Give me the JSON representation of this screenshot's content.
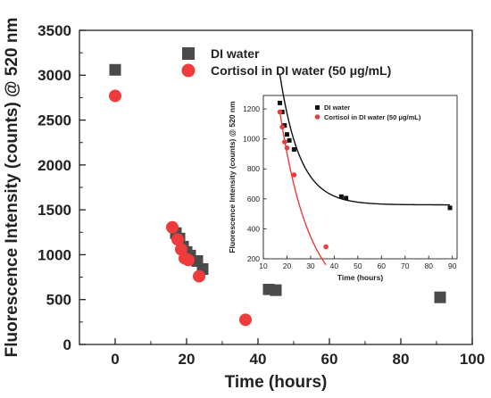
{
  "chart_data": [
    {
      "type": "scatter",
      "title": "",
      "xlabel": "Time (hours)",
      "ylabel": "Fluorescence Intensity (counts) @ 520 nm",
      "xlim": [
        -10,
        100
      ],
      "ylim": [
        0,
        3500
      ],
      "x_ticks": [
        0,
        20,
        40,
        60,
        80,
        100
      ],
      "y_ticks": [
        0,
        500,
        1000,
        1500,
        2000,
        2500,
        3000,
        3500
      ],
      "legend_position": "top-right",
      "series": [
        {
          "name": "DI water",
          "marker": "square",
          "color": "#4a4a4a",
          "points": [
            [
              0,
              3060
            ],
            [
              17,
              1240
            ],
            [
              18,
              1180
            ],
            [
              19,
              1090
            ],
            [
              20,
              1030
            ],
            [
              21,
              990
            ],
            [
              23,
              930
            ],
            [
              24.5,
              840
            ],
            [
              43,
              615
            ],
            [
              45,
              605
            ],
            [
              91,
              525
            ]
          ]
        },
        {
          "name": "Cortisol in DI water (50 μg/mL)",
          "marker": "circle",
          "color": "#ee3b3b",
          "points": [
            [
              0,
              2770
            ],
            [
              16,
              1305
            ],
            [
              17.5,
              1170
            ],
            [
              18.5,
              1060
            ],
            [
              19.5,
              960
            ],
            [
              20.5,
              940
            ],
            [
              23.5,
              760
            ],
            [
              36.5,
              275
            ]
          ]
        }
      ]
    },
    {
      "type": "scatter",
      "title": "",
      "xlabel": "Time (hours)",
      "ylabel": "Fluorescence Intensity (counts) @ 520 nm",
      "xlim": [
        10,
        92
      ],
      "ylim": [
        200,
        1290
      ],
      "x_ticks": [
        10,
        20,
        30,
        40,
        50,
        60,
        70,
        80,
        90
      ],
      "y_ticks": [
        200,
        400,
        600,
        800,
        1000,
        1200
      ],
      "legend_position": "top-right",
      "series": [
        {
          "name": "DI water",
          "marker": "square",
          "color": "#111111",
          "points": [
            [
              17,
              1240
            ],
            [
              18,
              1180
            ],
            [
              19,
              1090
            ],
            [
              20,
              1030
            ],
            [
              21,
              990
            ],
            [
              23,
              930
            ],
            [
              43,
              615
            ],
            [
              45,
              605
            ],
            [
              89,
              540
            ]
          ]
        },
        {
          "name": "Cortisol in DI water (50 μg/mL)",
          "marker": "circle",
          "color": "#ee3b3b",
          "points": [
            [
              17,
              1180
            ],
            [
              18,
              1080
            ],
            [
              19,
              980
            ],
            [
              20,
              940
            ],
            [
              23,
              760
            ],
            [
              36.5,
              280
            ]
          ]
        }
      ],
      "fits": [
        {
          "series": "DI water",
          "form": "exponential decay",
          "a": 560,
          "b": 870,
          "tau": 8.5,
          "x0": 17,
          "x_start": 17,
          "x_end": 89,
          "color": "#111111"
        },
        {
          "series": "Cortisol in DI water (50 μg/mL)",
          "form": "exponential decay",
          "a": -120,
          "b": 1300,
          "tau": 12.7,
          "x0": 17,
          "x_start": 17,
          "x_end": 36.5,
          "color": "#ee3b3b"
        }
      ]
    }
  ]
}
